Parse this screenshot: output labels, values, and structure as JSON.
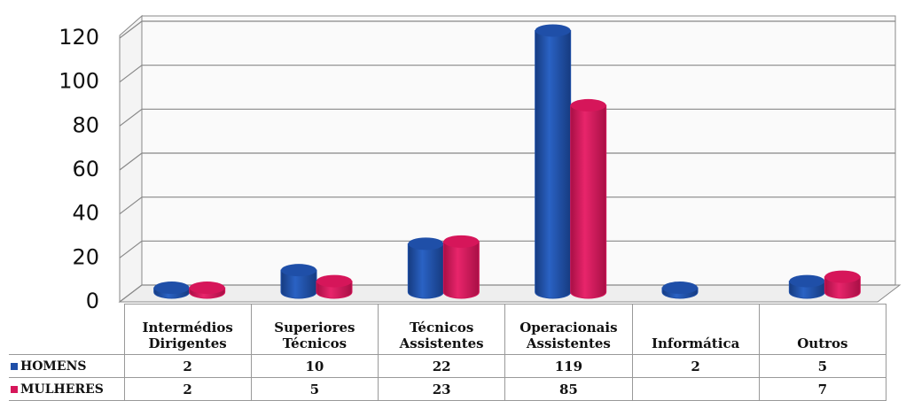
{
  "chart_data": {
    "type": "bar3d",
    "categories": [
      "Intermédios Dirigentes",
      "Superiores Técnicos",
      "Técnicos Assistentes",
      "Operacionais Assistentes",
      "Informática",
      "Outros"
    ],
    "series": [
      {
        "name": "HOMENS",
        "color": "#1f4fa8",
        "values": [
          2,
          10,
          22,
          119,
          2,
          5
        ]
      },
      {
        "name": "MULHERES",
        "color": "#d6165a",
        "values": [
          2,
          5,
          23,
          85,
          null,
          7
        ]
      }
    ],
    "ylim": [
      0,
      120
    ],
    "yticks": [
      0,
      20,
      40,
      60,
      80,
      100,
      120
    ],
    "grid": true
  }
}
